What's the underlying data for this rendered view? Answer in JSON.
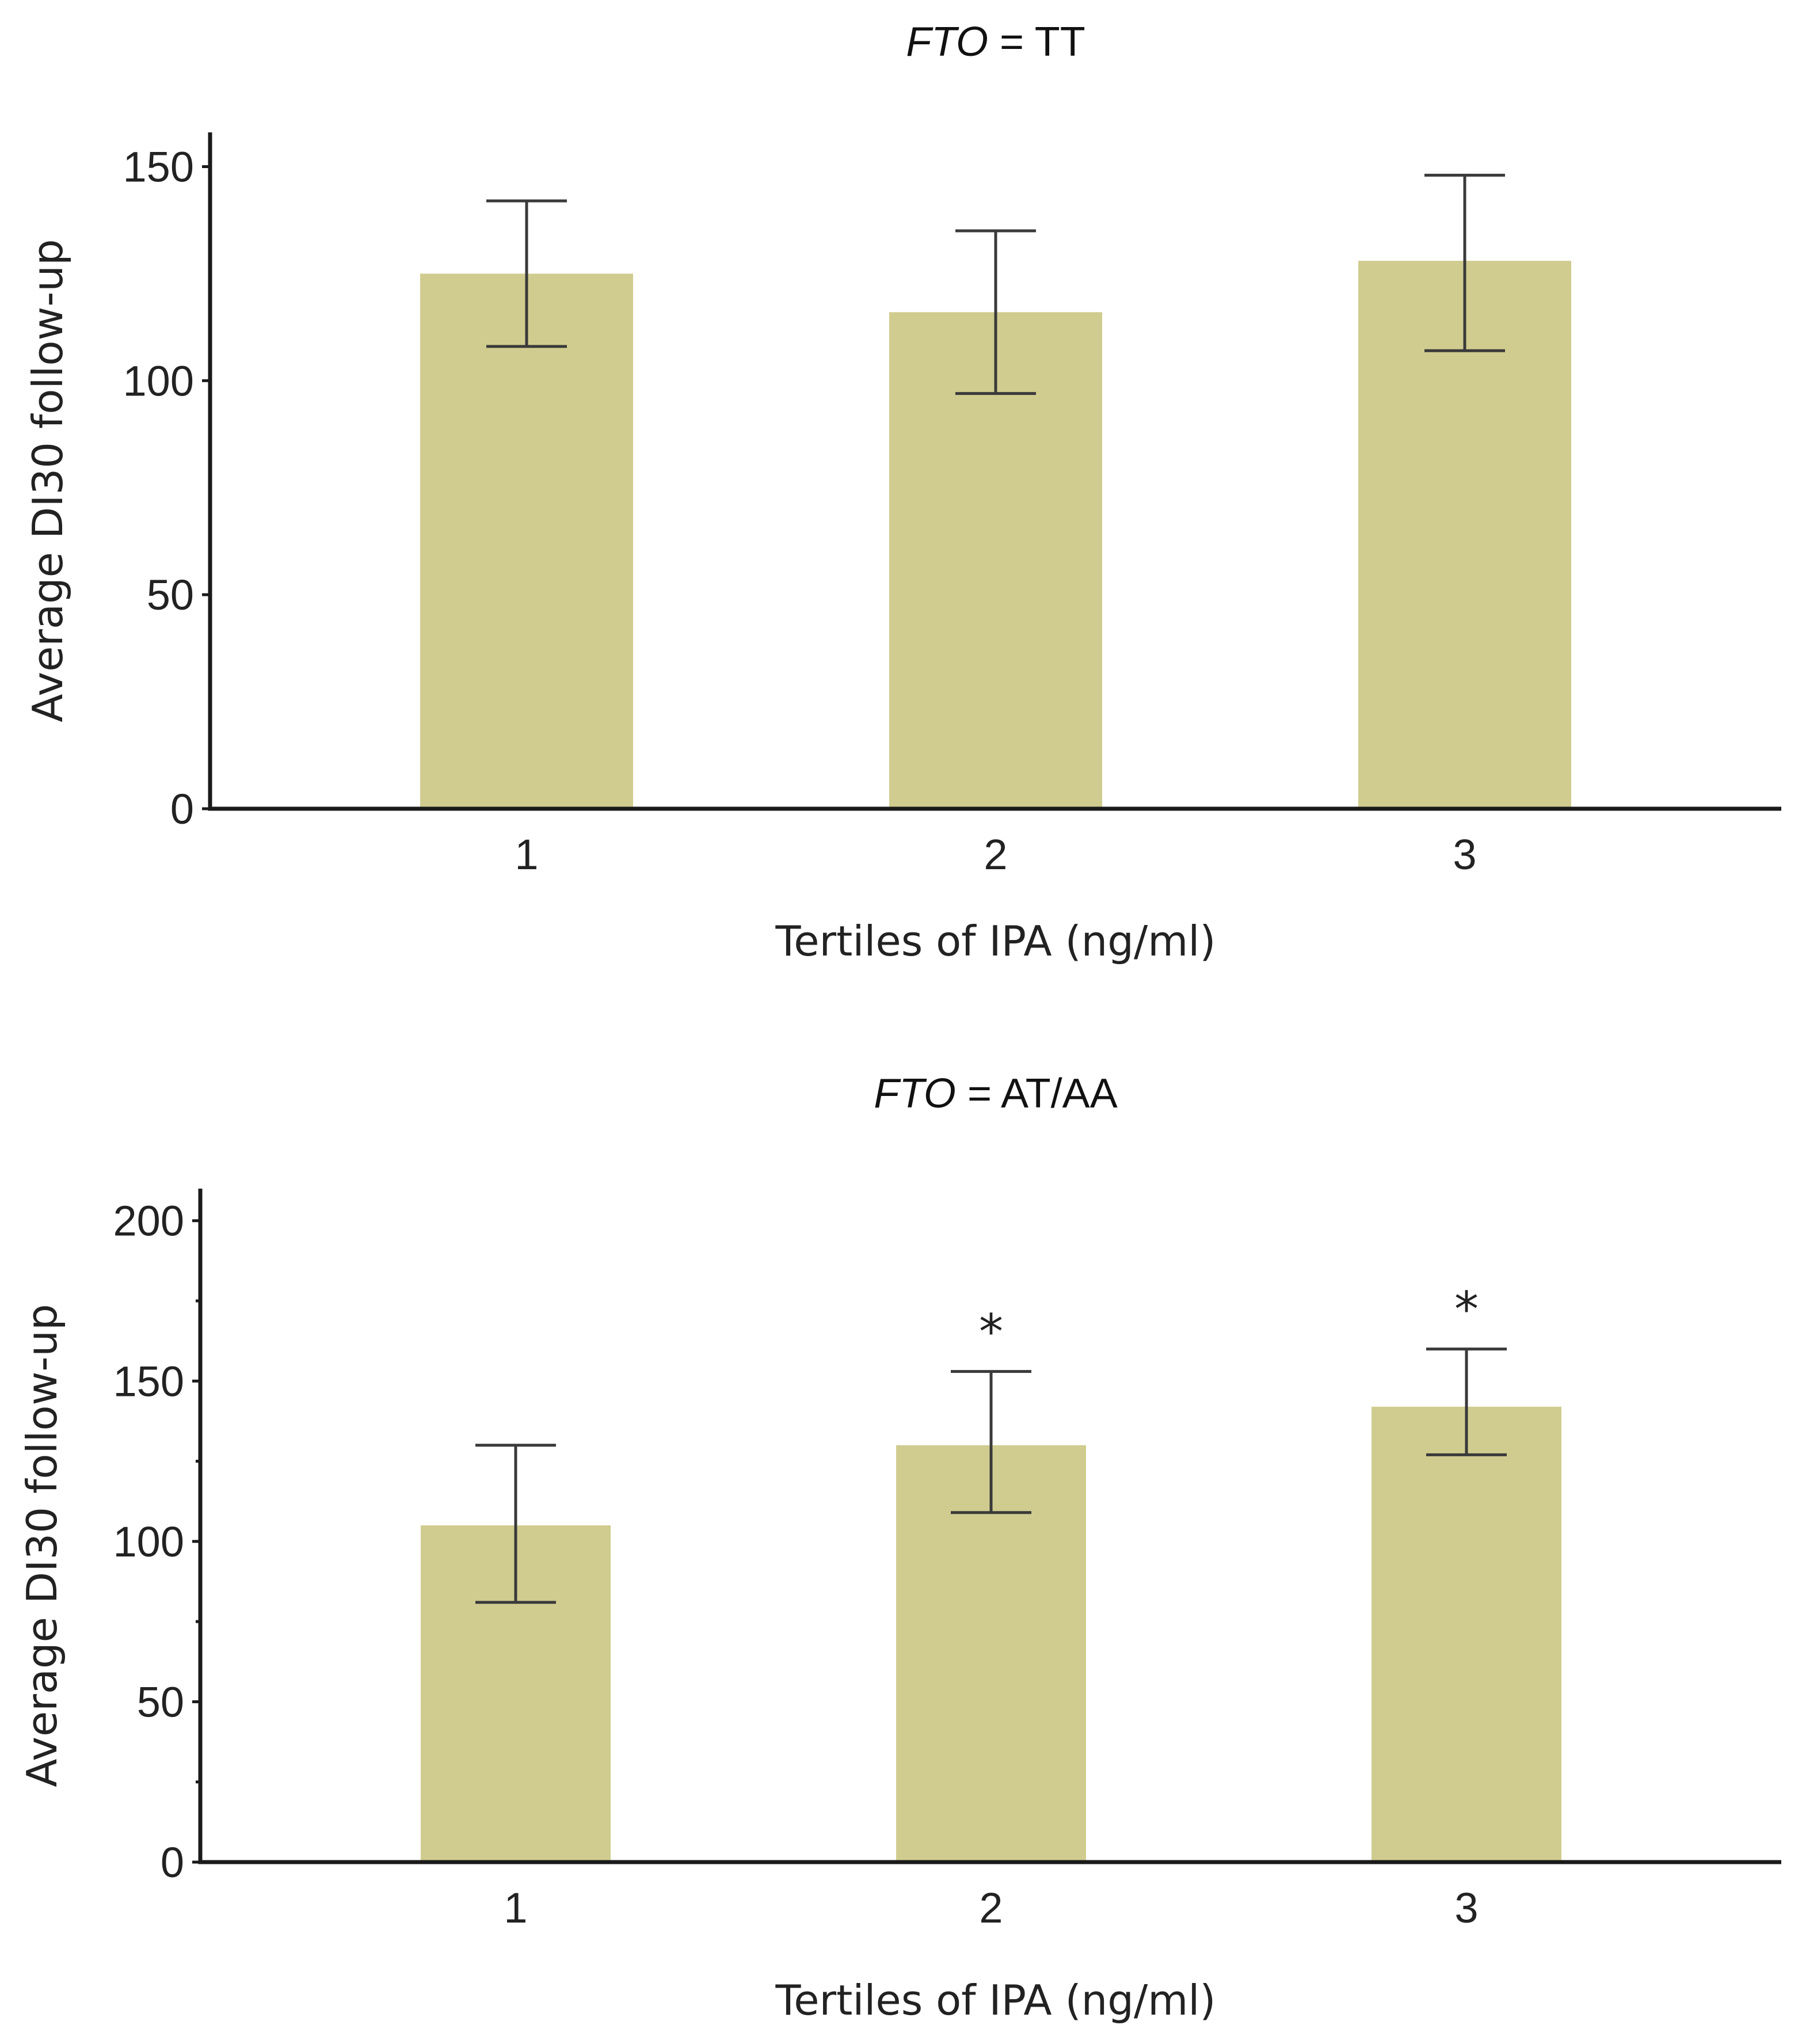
{
  "chart_data": [
    {
      "type": "bar",
      "title_italic": "FTO",
      "title_rest": " = TT",
      "xlabel": "Tertiles of IPA (ng/ml)",
      "ylabel": "Average DI30 follow-up",
      "categories": [
        "1",
        "2",
        "3"
      ],
      "values": [
        125,
        116,
        128
      ],
      "error_low": [
        108,
        97,
        107
      ],
      "error_high": [
        142,
        135,
        148
      ],
      "significance": [
        "",
        "",
        ""
      ],
      "ylim": [
        0,
        158
      ],
      "yticks": [
        0,
        50,
        100,
        150
      ],
      "ytick_labels": [
        "0",
        "50",
        "100",
        "150"
      ],
      "bar_color": "#d0cc8f"
    },
    {
      "type": "bar",
      "title_italic": "FTO",
      "title_rest": " = AT/AA",
      "xlabel": "Tertiles of IPA (ng/ml)",
      "ylabel": "Average DI30 follow-up",
      "categories": [
        "1",
        "2",
        "3"
      ],
      "values": [
        105,
        130,
        142
      ],
      "error_low": [
        81,
        109,
        127
      ],
      "error_high": [
        130,
        153,
        160
      ],
      "significance": [
        "",
        "*",
        "*"
      ],
      "ylim": [
        0,
        210
      ],
      "yticks": [
        0,
        50,
        100,
        150,
        200
      ],
      "ytick_labels": [
        "0",
        "50",
        "100",
        "150",
        "200"
      ],
      "minor_ticks": [
        25,
        75,
        125,
        175
      ],
      "bar_color": "#d0cc8f"
    }
  ]
}
